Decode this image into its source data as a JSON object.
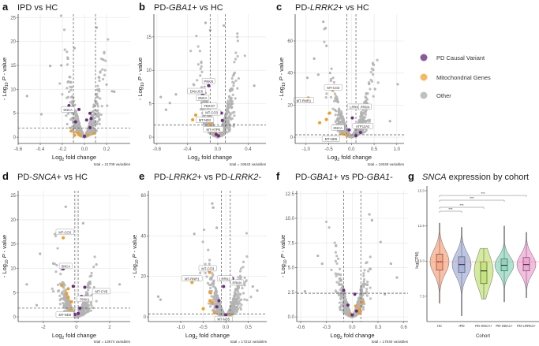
{
  "legend": {
    "items": [
      {
        "label": "PD Causal Variant",
        "color": "#7b4a91"
      },
      {
        "label": "Mitochondrial Genes",
        "color": "#f7b14d"
      },
      {
        "label": "Other",
        "color": "#b9b9b9"
      }
    ]
  },
  "axis_text": {
    "x_main": "Log",
    "x_sub": "2",
    "x_rest": " fold change",
    "y_pre": "- Log",
    "y_sub": "10",
    "y_p": " P",
    "y_rest": " - value"
  },
  "chart_data": [
    {
      "type": "scatter",
      "panel": "a",
      "title_parts": [
        {
          "t": "IPD vs HC",
          "i": false
        }
      ],
      "xlim": [
        -0.6,
        0.414
      ],
      "ylim": [
        -1.3,
        25.7
      ],
      "xticks": [
        "-0.6",
        "-0.4",
        "-0.2",
        "0.0",
        "0.2"
      ],
      "xtick_vals": [
        -0.6,
        -0.4,
        -0.2,
        0,
        0.2
      ],
      "yticks": [
        "0",
        "5",
        "10",
        "15",
        "20",
        "25"
      ],
      "ytick_vals": [
        0,
        5,
        10,
        15,
        20,
        25
      ],
      "fc_threshold": 0.1,
      "p_threshold": 1.9,
      "total": "total = 21708 variables",
      "cloud": {
        "sd": 0.07,
        "yscale": 3.2,
        "n": 650,
        "skew": 0
      },
      "outliers": [
        [
          -0.52,
          8.6
        ],
        [
          -0.39,
          4.8
        ],
        [
          -0.31,
          14.9
        ],
        [
          -0.21,
          15
        ],
        [
          -0.15,
          16.4
        ],
        [
          -0.09,
          18.6
        ],
        [
          0.11,
          22.9
        ],
        [
          0.17,
          16.2
        ],
        [
          0.2,
          11
        ],
        [
          0.25,
          9.6
        ],
        [
          0.27,
          9.5
        ]
      ],
      "causal": [
        [
          -0.14,
          6.6
        ],
        [
          -0.05,
          5.8
        ],
        [
          0.02,
          3.6
        ],
        [
          0.05,
          5.0
        ],
        [
          0.05,
          2.0
        ],
        [
          -0.08,
          3.2
        ],
        [
          0.0,
          0.2
        ],
        [
          0.06,
          3.9
        ]
      ],
      "mito": [
        [
          -0.12,
          1.3
        ],
        [
          -0.06,
          0.9
        ],
        [
          -0.04,
          0.4
        ],
        [
          0.03,
          0.5
        ],
        [
          0.08,
          0.8
        ],
        [
          -0.09,
          0.4
        ]
      ],
      "labels": [
        {
          "text": "SNCA",
          "x": -0.15,
          "y": 5.8
        }
      ]
    },
    {
      "type": "scatter",
      "panel": "b",
      "title_parts": [
        {
          "t": "PD-",
          "i": false
        },
        {
          "t": "GBA1",
          "i": true
        },
        {
          "t": "+ vs HC",
          "i": false
        }
      ],
      "xlim": [
        -0.84,
        0.634
      ],
      "ylim": [
        -0.94,
        18.4
      ],
      "xticks": [
        "-0.8",
        "-0.4",
        "0.0",
        "0.4"
      ],
      "xtick_vals": [
        -0.8,
        -0.4,
        0,
        0.4
      ],
      "yticks": [
        "0",
        "5",
        "10",
        "15"
      ],
      "ytick_vals": [
        0,
        5,
        10,
        15
      ],
      "fc_threshold": 0.1,
      "p_threshold": 1.8,
      "total": "total = 19543 variables",
      "cloud": {
        "sd": 0.11,
        "yscale": 2.6,
        "n": 650,
        "skew": 0
      },
      "outliers": [
        [
          -0.75,
          6.0
        ],
        [
          -0.68,
          4.1
        ],
        [
          -0.63,
          5.1
        ],
        [
          -0.55,
          6.4
        ],
        [
          -0.16,
          17.1
        ],
        [
          -0.1,
          16
        ],
        [
          0.08,
          16.7
        ],
        [
          0.48,
          7.7
        ]
      ],
      "causal": [
        [
          -0.12,
          7.7
        ],
        [
          -0.2,
          6.4
        ],
        [
          -0.1,
          4.8
        ],
        [
          0.05,
          3.6
        ],
        [
          0.06,
          2.5
        ],
        [
          -0.02,
          0.4
        ],
        [
          0.01,
          0.2
        ]
      ],
      "mito": [
        [
          -0.33,
          2.6
        ],
        [
          -0.29,
          3.3
        ],
        [
          -0.1,
          2.0
        ],
        [
          -0.12,
          3.8
        ],
        [
          -0.03,
          0.8
        ],
        [
          0.05,
          0.9
        ]
      ],
      "labels": [
        {
          "text": "PRKN",
          "x": -0.12,
          "y": 8.4
        },
        {
          "text": "DNAJC6",
          "x": -0.28,
          "y": 6.9
        },
        {
          "text": "SNCA",
          "x": -0.2,
          "y": 5.9
        },
        {
          "text": "FBXO7",
          "x": -0.11,
          "y": 4.7
        },
        {
          "text": "MT-CO3",
          "x": -0.08,
          "y": 3.7
        },
        {
          "text": "MT-ND2",
          "x": -0.17,
          "y": 2.6
        },
        {
          "text": "MT-ATP8",
          "x": -0.06,
          "y": 1.2
        }
      ]
    },
    {
      "type": "scatter",
      "panel": "c",
      "title_parts": [
        {
          "t": "PD-",
          "i": false
        },
        {
          "t": "LRRK2",
          "i": true
        },
        {
          "t": "+ vs HC",
          "i": false
        }
      ],
      "xlim": [
        -1.24,
        1.16
      ],
      "ylim": [
        -3.9,
        76.7
      ],
      "xticks": [
        "-1.0",
        "-0.5",
        "0.0",
        "0.5",
        "1.0"
      ],
      "xtick_vals": [
        -1,
        -0.5,
        0,
        0.5,
        1
      ],
      "yticks": [
        "0",
        "20",
        "40",
        "60"
      ],
      "ytick_vals": [
        0,
        20,
        40,
        60
      ],
      "fc_threshold": 0.1,
      "p_threshold": 1.5,
      "total": "total = 19349 variables",
      "cloud": {
        "sd": 0.2,
        "yscale": 8.5,
        "n": 650,
        "skew": 0
      },
      "outliers": [
        [
          -0.62,
          72
        ],
        [
          -0.57,
          68
        ],
        [
          -0.55,
          57
        ],
        [
          -0.82,
          49
        ],
        [
          -0.73,
          39
        ],
        [
          -0.97,
          37
        ],
        [
          -0.47,
          40
        ],
        [
          0.48,
          42
        ],
        [
          0.52,
          30
        ],
        [
          1.02,
          33
        ],
        [
          0.85,
          10
        ]
      ],
      "causal": [
        [
          0.12,
          18.5
        ],
        [
          0.02,
          12
        ],
        [
          0.08,
          7.5
        ],
        [
          -0.05,
          4.5
        ],
        [
          0.2,
          3
        ],
        [
          0.1,
          1.0
        ]
      ],
      "mito": [
        [
          -0.95,
          24.5
        ],
        [
          -0.42,
          29.5
        ],
        [
          -0.48,
          15
        ],
        [
          -0.55,
          11
        ],
        [
          -0.7,
          9
        ],
        [
          -0.3,
          6
        ],
        [
          -0.2,
          2
        ],
        [
          -0.1,
          1
        ]
      ],
      "labels": [
        {
          "text": "MT-CO3",
          "x": -0.4,
          "y": 31
        },
        {
          "text": "MT-RNR1",
          "x": -1.05,
          "y": 23
        },
        {
          "text": "LRRK2",
          "x": 0.08,
          "y": 19
        },
        {
          "text": "PRKN",
          "x": 0.3,
          "y": 19
        },
        {
          "text": "SNCA",
          "x": -0.3,
          "y": 6
        },
        {
          "text": "ATP13A2",
          "x": 0.25,
          "y": 7
        },
        {
          "text": "MT-ND5",
          "x": -0.45,
          "y": -1
        }
      ]
    },
    {
      "type": "scatter",
      "panel": "d",
      "title_parts": [
        {
          "t": "PD-",
          "i": false
        },
        {
          "t": "SNCA",
          "i": true
        },
        {
          "t": "+ vs HC",
          "i": false
        }
      ],
      "xlim": [
        -3.52,
        3.24
      ],
      "ylim": [
        -0.97,
        26.0
      ],
      "xticks": [
        "-2",
        "0",
        "2"
      ],
      "xtick_vals": [
        -2,
        0,
        2
      ],
      "yticks": [
        "0",
        "5",
        "10",
        "15",
        "20",
        "25"
      ],
      "ytick_vals": [
        0,
        5,
        10,
        15,
        20,
        25
      ],
      "fc_threshold": 0.1,
      "p_threshold": 1.8,
      "total": "total = 13674 variables",
      "cloud": {
        "sd": 0.45,
        "yscale": 2.2,
        "n": 650,
        "skew": -0.3
      },
      "outliers": [
        [
          -0.65,
          22.7
        ],
        [
          -2.2,
          13
        ],
        [
          -3.0,
          6.7
        ],
        [
          -2.4,
          2.4
        ],
        [
          -1.4,
          11
        ],
        [
          2.6,
          6.7
        ],
        [
          1.2,
          10.8
        ],
        [
          0.4,
          19.3
        ]
      ],
      "causal": [
        [
          -0.8,
          9.9
        ],
        [
          -0.2,
          6.3
        ],
        [
          0.5,
          6.1
        ],
        [
          0.3,
          4.2
        ],
        [
          0.2,
          1.8
        ],
        [
          0.1,
          0.7
        ],
        [
          -0.1,
          0.5
        ]
      ],
      "mito": [
        [
          -0.8,
          16.3
        ],
        [
          1.2,
          5.5
        ],
        [
          -0.9,
          6.5
        ],
        [
          -0.5,
          5.8
        ],
        [
          -0.6,
          4.8
        ],
        [
          -0.5,
          4.0
        ],
        [
          -0.3,
          3.1
        ],
        [
          -0.35,
          1.5
        ]
      ],
      "labels": [
        {
          "text": "MT-CO3",
          "x": -0.7,
          "y": 17.5
        },
        {
          "text": "SNCA",
          "x": -0.65,
          "y": 10.5
        },
        {
          "text": "MT-CYB",
          "x": 1.5,
          "y": 5.3
        },
        {
          "text": "PINK1",
          "x": 0.5,
          "y": 3.7
        },
        {
          "text": "MT-ND5",
          "x": -0.7,
          "y": 0.5
        }
      ]
    },
    {
      "type": "scatter",
      "panel": "e",
      "title_parts": [
        {
          "t": "PD-",
          "i": false
        },
        {
          "t": "LRRK2",
          "i": true
        },
        {
          "t": "+ vs PD-",
          "i": false
        },
        {
          "t": "LRRK2",
          "i": true
        },
        {
          "t": "-",
          "i": false
        }
      ],
      "xlim": [
        -1.72,
        0.91
      ],
      "ylim": [
        -2.3,
        62.3
      ],
      "xticks": [
        "-1.0",
        "-0.5",
        "0.0",
        "0.5"
      ],
      "xtick_vals": [
        -1,
        -0.5,
        0,
        0.5
      ],
      "yticks": [
        "0",
        "20",
        "40",
        "60"
      ],
      "ytick_vals": [
        0,
        20,
        40,
        60
      ],
      "fc_threshold": 0.1,
      "p_threshold": 1.5,
      "total": "total = 17212 variables",
      "cloud": {
        "sd": 0.18,
        "yscale": 6.5,
        "n": 650,
        "skew": 0
      },
      "outliers": [
        [
          -0.3,
          56
        ],
        [
          -0.28,
          54
        ],
        [
          -0.7,
          41
        ],
        [
          -1.5,
          10
        ],
        [
          -1.45,
          8.5
        ],
        [
          0.6,
          15
        ],
        [
          0.7,
          13
        ],
        [
          -0.2,
          44
        ]
      ],
      "causal": [
        [
          -0.1,
          19
        ],
        [
          -0.05,
          15
        ],
        [
          0.15,
          19
        ],
        [
          -0.15,
          8
        ],
        [
          -0.2,
          5
        ],
        [
          0.0,
          1
        ]
      ],
      "mito": [
        [
          -0.75,
          17
        ],
        [
          -0.36,
          22
        ],
        [
          -0.35,
          12
        ],
        [
          -0.35,
          8
        ],
        [
          -0.3,
          7
        ],
        [
          -0.5,
          4
        ],
        [
          -0.25,
          2
        ],
        [
          0.1,
          0.5
        ]
      ],
      "labels": [
        {
          "text": "MT-CO3",
          "x": -0.4,
          "y": 24
        },
        {
          "text": "MT-RNR1",
          "x": -0.75,
          "y": 19
        },
        {
          "text": "LRRK2",
          "x": -0.02,
          "y": 19
        },
        {
          "text": "PRKN",
          "x": 0.25,
          "y": 17
        },
        {
          "text": "MT-ND5",
          "x": -0.05,
          "y": -1
        }
      ]
    },
    {
      "type": "scatter",
      "panel": "f",
      "title_parts": [
        {
          "t": "PD-",
          "i": false
        },
        {
          "t": "GBA1",
          "i": true
        },
        {
          "t": "+ vs PD-",
          "i": false
        },
        {
          "t": "GBA1",
          "i": true
        },
        {
          "t": "-",
          "i": false
        }
      ],
      "xlim": [
        -0.646,
        0.649
      ],
      "ylim": [
        -0.47,
        12.8
      ],
      "xticks": [
        "-0.6",
        "-0.3",
        "0.0",
        "0.3",
        "0.6"
      ],
      "xtick_vals": [
        -0.6,
        -0.3,
        0,
        0.3,
        0.6
      ],
      "yticks": [
        "0.0",
        "2.5",
        "5.0",
        "7.5",
        "10.0",
        "12.5"
      ],
      "ytick_vals": [
        0,
        2.5,
        5,
        7.5,
        10,
        12.5
      ],
      "fc_threshold": 0.1,
      "p_threshold": 2.4,
      "total": "total = 17040 variables",
      "cloud": {
        "sd": 0.08,
        "yscale": 1.3,
        "n": 650,
        "skew": 0
      },
      "outliers": [
        [
          -0.55,
          2.6
        ],
        [
          -0.4,
          6.2
        ],
        [
          -0.35,
          5.4
        ],
        [
          0.2,
          10.4
        ],
        [
          0.23,
          9.8
        ],
        [
          0.33,
          7.6
        ],
        [
          0.45,
          5.4
        ],
        [
          0.52,
          4.0
        ],
        [
          0.38,
          2.3
        ]
      ],
      "causal": [
        [
          -0.1,
          2.7
        ],
        [
          -0.05,
          1.2
        ],
        [
          0.03,
          2.3
        ],
        [
          0.05,
          0.6
        ],
        [
          0.0,
          0.2
        ]
      ],
      "mito": [
        [
          0.04,
          1.1
        ],
        [
          0.08,
          0.4
        ],
        [
          0.12,
          1.5
        ],
        [
          0.09,
          0.8
        ],
        [
          -0.02,
          0.3
        ]
      ],
      "labels": []
    },
    {
      "type": "violin",
      "panel": "g",
      "title_parts": [
        {
          "t": "SNCA",
          "i": true
        },
        {
          "t": " expression by cohort",
          "i": false
        }
      ],
      "xlabel": "Cohort",
      "ylabel": "log(CPM)",
      "ylim": [
        5.7,
        15.0
      ],
      "yticks": [
        "7.5",
        "10.0",
        "12.5",
        "15.0"
      ],
      "ytick_vals": [
        7.5,
        10,
        12.5,
        15
      ],
      "reference_line": 9.95,
      "categories": [
        "HC",
        "IPD",
        "PD-SNCA+",
        "PD-GBA1+",
        "PD-LRRK2+"
      ],
      "colors": [
        "#f9a987",
        "#a9b3dc",
        "#c6e47d",
        "#8fd9c0",
        "#f1a7d6"
      ],
      "stats": [
        {
          "min": 7.0,
          "q1": 9.35,
          "median": 9.95,
          "q3": 10.5,
          "max": 12.7
        },
        {
          "min": 6.1,
          "q1": 9.2,
          "median": 9.75,
          "q3": 10.3,
          "max": 12.4
        },
        {
          "min": 7.3,
          "q1": 8.4,
          "median": 9.3,
          "q3": 9.95,
          "max": 10.9
        },
        {
          "min": 7.1,
          "q1": 9.3,
          "median": 9.7,
          "q3": 10.15,
          "max": 12.5
        },
        {
          "min": 7.4,
          "q1": 9.3,
          "median": 9.75,
          "q3": 10.25,
          "max": 12.05
        }
      ],
      "comparisons": [
        {
          "from": "HC",
          "to": "PD-LRRK2+",
          "label": "***"
        },
        {
          "from": "HC",
          "to": "PD-GBA1+",
          "label": "***"
        },
        {
          "from": "HC",
          "to": "PD-SNCA+",
          "label": "***"
        },
        {
          "from": "HC",
          "to": "IPD",
          "label": "***"
        }
      ]
    }
  ]
}
